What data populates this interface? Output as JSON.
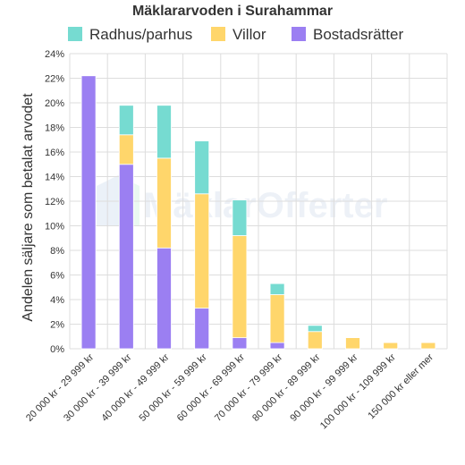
{
  "chart_data": {
    "type": "bar",
    "stacked": true,
    "title": "Mäklararvoden i Surahammar",
    "ylabel": "Andelen säljare som betalat arvodet",
    "xlabel": "",
    "ylim": [
      0,
      24
    ],
    "yticks": [
      "0%",
      "2%",
      "4%",
      "6%",
      "8%",
      "10%",
      "12%",
      "14%",
      "16%",
      "18%",
      "20%",
      "22%",
      "24%"
    ],
    "legend_position": "top",
    "grid": true,
    "categories": [
      "20 000 kr - 29 999 kr",
      "30 000 kr - 39 999 kr",
      "40 000 kr - 49 999 kr",
      "50 000 kr - 59 999 kr",
      "60 000 kr - 69 999 kr",
      "70 000 kr - 79 999 kr",
      "80 000 kr - 89 999 kr",
      "90 000 kr - 99 999 kr",
      "100 000 kr - 109 999 kr",
      "150 000 kr eller mer"
    ],
    "series": [
      {
        "name": "Bostadsrätter",
        "color": "#9b7ff2",
        "values": [
          22.2,
          15.0,
          8.2,
          3.3,
          0.9,
          0.5,
          0,
          0,
          0,
          0
        ]
      },
      {
        "name": "Villor",
        "color": "#ffd66b",
        "values": [
          0,
          2.4,
          7.3,
          9.3,
          8.3,
          3.9,
          1.4,
          0.9,
          0.5,
          0.5
        ]
      },
      {
        "name": "Radhus/parhus",
        "color": "#76dbd1",
        "values": [
          0,
          2.4,
          4.3,
          4.3,
          2.9,
          0.9,
          0.5,
          0,
          0,
          0
        ]
      }
    ],
    "legend_order": [
      "Radhus/parhus",
      "Villor",
      "Bostadsrätter"
    ]
  },
  "watermark": "MäklarOfferter"
}
